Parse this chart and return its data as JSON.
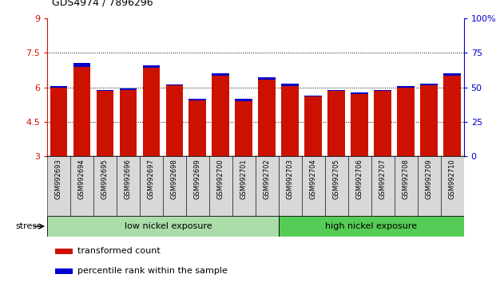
{
  "title": "GDS4974 / 7896296",
  "samples": [
    "GSM992693",
    "GSM992694",
    "GSM992695",
    "GSM992696",
    "GSM992697",
    "GSM992698",
    "GSM992699",
    "GSM992700",
    "GSM992701",
    "GSM992702",
    "GSM992703",
    "GSM992704",
    "GSM992705",
    "GSM992706",
    "GSM992707",
    "GSM992708",
    "GSM992709",
    "GSM992710"
  ],
  "red_values": [
    6.0,
    6.9,
    5.85,
    5.9,
    6.85,
    6.1,
    5.45,
    6.5,
    5.4,
    6.35,
    6.05,
    5.6,
    5.85,
    5.7,
    5.85,
    6.0,
    6.1,
    6.5
  ],
  "blue_values": [
    6.05,
    7.05,
    5.9,
    5.95,
    6.95,
    6.12,
    5.5,
    6.6,
    5.5,
    6.45,
    6.15,
    5.65,
    5.9,
    5.78,
    5.9,
    6.05,
    6.18,
    6.6
  ],
  "ylim_left": [
    3,
    9
  ],
  "ylim_right": [
    0,
    100
  ],
  "yticks_left": [
    3,
    4.5,
    6,
    7.5,
    9
  ],
  "yticks_right": [
    0,
    25,
    50,
    75,
    100
  ],
  "ytick_labels_left": [
    "3",
    "4.5",
    "6",
    "7.5",
    "9"
  ],
  "ytick_labels_right": [
    "0",
    "25",
    "50",
    "75",
    "100%"
  ],
  "grid_values": [
    4.5,
    6.0,
    7.5
  ],
  "bar_color": "#cc1100",
  "blue_color": "#0000cc",
  "group1_label": "low nickel exposure",
  "group2_label": "high nickel exposure",
  "group1_color": "#aaddaa",
  "group2_color": "#55cc55",
  "stress_label": "stress",
  "legend_red": "transformed count",
  "legend_blue": "percentile rank within the sample",
  "n_group1": 10,
  "n_group2": 8,
  "tick_bg_color": "#d8d8d8"
}
